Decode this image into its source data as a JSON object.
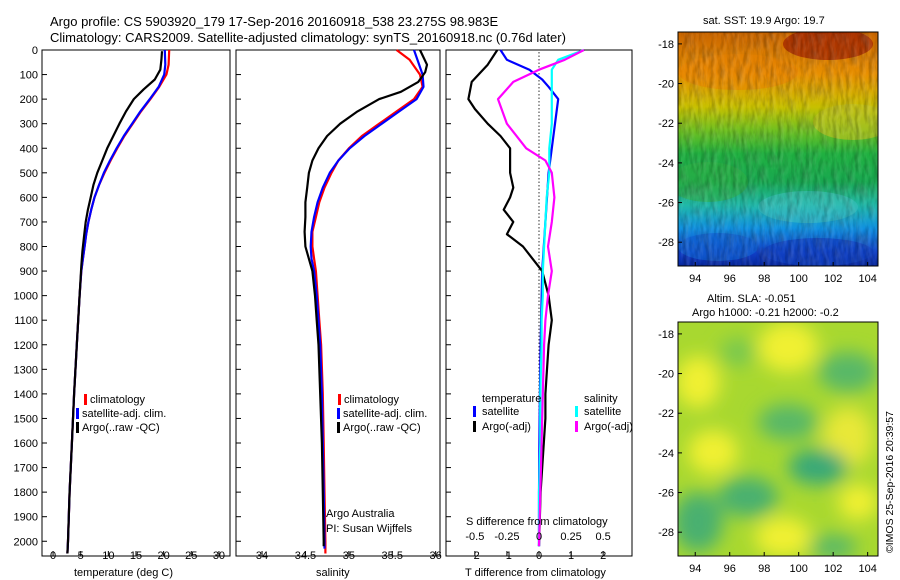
{
  "header": {
    "line1": "Argo profile: CS 5903920_179 17-Sep-2016 20160918_538 23.275S 98.983E",
    "line2": "Climatology: CARS2009. Satellite-adjusted climatology: synTS_20160918.nc (0.76d later)"
  },
  "credit": {
    "argo": "Argo Australia",
    "pi": "PI: Susan Wijffels",
    "stamp": "©IMOS 25-Sep-2016 20:39:57"
  },
  "map_sst": {
    "title": "sat. SST: 19.9  Argo: 19.7",
    "x_ticks": [
      "94",
      "96",
      "98",
      "100",
      "102",
      "104"
    ],
    "y_ticks": [
      "-18",
      "-20",
      "-22",
      "-24",
      "-26",
      "-28"
    ]
  },
  "map_sla": {
    "title1": "Altim. SLA: -0.051",
    "title2": "Argo h1000: -0.21  h2000: -0.2",
    "x_ticks": [
      "94",
      "96",
      "98",
      "100",
      "102",
      "104"
    ],
    "y_ticks": [
      "-18",
      "-20",
      "-22",
      "-24",
      "-26",
      "-28"
    ]
  },
  "colors": {
    "climatology": "#ff0000",
    "satellite": "#0000ff",
    "argo": "#000000",
    "satellite_s": "#00ffff",
    "argo_s": "#ff00ff"
  },
  "chart_data": [
    {
      "type": "line",
      "xlabel": "temperature (deg C)",
      "x_ticks": [
        "0",
        "5",
        "10",
        "15",
        "20",
        "25",
        "30"
      ],
      "y_ticks": [
        "0",
        "100",
        "200",
        "300",
        "400",
        "500",
        "600",
        "700",
        "800",
        "900",
        "1000",
        "1100",
        "1200",
        "1300",
        "1400",
        "1500",
        "1600",
        "1700",
        "1800",
        "1900",
        "2000"
      ],
      "xlim": [
        -2,
        32
      ],
      "ylim": [
        2060,
        0
      ],
      "legend": [
        "climatology",
        "satellite-adj. clim.",
        "Argo(..raw -QC)"
      ],
      "series": [
        {
          "name": "climatology",
          "points": [
            [
              21.0,
              0
            ],
            [
              20.9,
              60
            ],
            [
              20.5,
              100
            ],
            [
              19.2,
              150
            ],
            [
              17.6,
              200
            ],
            [
              15.9,
              250
            ],
            [
              14.4,
              300
            ],
            [
              12.9,
              350
            ],
            [
              11.6,
              400
            ],
            [
              10.4,
              450
            ],
            [
              9.3,
              500
            ],
            [
              8.3,
              550
            ],
            [
              7.5,
              600
            ],
            [
              6.9,
              650
            ],
            [
              6.4,
              700
            ],
            [
              6.0,
              750
            ],
            [
              5.7,
              800
            ],
            [
              5.4,
              850
            ],
            [
              5.1,
              900
            ],
            [
              4.8,
              1000
            ],
            [
              4.3,
              1200
            ],
            [
              3.8,
              1400
            ],
            [
              3.4,
              1600
            ],
            [
              3.0,
              1800
            ],
            [
              2.7,
              2000
            ],
            [
              2.6,
              2050
            ]
          ]
        },
        {
          "name": "satellite-adj. clim.",
          "points": [
            [
              20.2,
              0
            ],
            [
              20.3,
              60
            ],
            [
              20.1,
              100
            ],
            [
              19.1,
              150
            ],
            [
              17.5,
              200
            ],
            [
              15.8,
              250
            ],
            [
              14.3,
              300
            ],
            [
              12.8,
              350
            ],
            [
              11.5,
              400
            ],
            [
              10.3,
              450
            ],
            [
              9.2,
              500
            ],
            [
              8.3,
              550
            ],
            [
              7.5,
              600
            ],
            [
              6.9,
              650
            ],
            [
              6.4,
              700
            ],
            [
              6.0,
              750
            ],
            [
              5.7,
              800
            ],
            [
              5.4,
              850
            ],
            [
              5.1,
              900
            ],
            [
              4.8,
              1000
            ],
            [
              4.3,
              1200
            ],
            [
              3.8,
              1400
            ],
            [
              3.4,
              1600
            ],
            [
              3.0,
              1800
            ],
            [
              2.7,
              2000
            ],
            [
              2.6,
              2050
            ]
          ]
        },
        {
          "name": "Argo(..raw -QC)",
          "points": [
            [
              19.7,
              5
            ],
            [
              19.6,
              40
            ],
            [
              19.4,
              80
            ],
            [
              18.4,
              120
            ],
            [
              16.4,
              160
            ],
            [
              14.6,
              200
            ],
            [
              13.2,
              250
            ],
            [
              12.0,
              300
            ],
            [
              10.9,
              350
            ],
            [
              9.8,
              400
            ],
            [
              8.9,
              450
            ],
            [
              8.0,
              500
            ],
            [
              7.3,
              550
            ],
            [
              6.8,
              600
            ],
            [
              6.3,
              650
            ],
            [
              5.9,
              700
            ],
            [
              5.6,
              760
            ],
            [
              5.3,
              820
            ],
            [
              5.1,
              880
            ],
            [
              4.8,
              1000
            ],
            [
              4.3,
              1200
            ],
            [
              3.8,
              1400
            ],
            [
              3.4,
              1600
            ],
            [
              3.0,
              1800
            ],
            [
              2.7,
              2000
            ],
            [
              2.6,
              2050
            ]
          ]
        }
      ]
    },
    {
      "type": "line",
      "xlabel": "salinity",
      "x_ticks": [
        "34",
        "34.5",
        "35",
        "35.5",
        "36"
      ],
      "y_ticks": [],
      "xlim": [
        33.7,
        36.05
      ],
      "ylim": [
        2060,
        0
      ],
      "legend": [
        "climatology",
        "satellite-adj. clim.",
        "Argo(..raw -QC)"
      ],
      "series": [
        {
          "name": "climatology",
          "points": [
            [
              35.55,
              0
            ],
            [
              35.7,
              40
            ],
            [
              35.82,
              100
            ],
            [
              35.85,
              150
            ],
            [
              35.75,
              200
            ],
            [
              35.55,
              250
            ],
            [
              35.35,
              300
            ],
            [
              35.15,
              350
            ],
            [
              35.0,
              400
            ],
            [
              34.88,
              450
            ],
            [
              34.8,
              500
            ],
            [
              34.72,
              560
            ],
            [
              34.66,
              620
            ],
            [
              34.62,
              680
            ],
            [
              34.58,
              740
            ],
            [
              34.58,
              800
            ],
            [
              34.6,
              850
            ],
            [
              34.62,
              900
            ],
            [
              34.64,
              1000
            ],
            [
              34.66,
              1100
            ],
            [
              34.68,
              1200
            ],
            [
              34.7,
              1400
            ],
            [
              34.71,
              1600
            ],
            [
              34.72,
              1800
            ],
            [
              34.73,
              2000
            ],
            [
              34.73,
              2050
            ]
          ]
        },
        {
          "name": "satellite-adj. clim.",
          "points": [
            [
              35.75,
              0
            ],
            [
              35.8,
              50
            ],
            [
              35.85,
              100
            ],
            [
              35.86,
              150
            ],
            [
              35.78,
              200
            ],
            [
              35.58,
              250
            ],
            [
              35.38,
              300
            ],
            [
              35.18,
              350
            ],
            [
              35.01,
              400
            ],
            [
              34.88,
              450
            ],
            [
              34.78,
              500
            ],
            [
              34.7,
              560
            ],
            [
              34.64,
              620
            ],
            [
              34.6,
              680
            ],
            [
              34.57,
              740
            ],
            [
              34.56,
              800
            ],
            [
              34.57,
              850
            ],
            [
              34.6,
              900
            ],
            [
              34.63,
              1000
            ],
            [
              34.65,
              1100
            ],
            [
              34.67,
              1200
            ],
            [
              34.69,
              1400
            ],
            [
              34.7,
              1600
            ],
            [
              34.71,
              1800
            ],
            [
              34.72,
              2000
            ],
            [
              34.72,
              2030
            ]
          ]
        },
        {
          "name": "Argo(..raw -QC)",
          "points": [
            [
              35.82,
              0
            ],
            [
              35.9,
              60
            ],
            [
              35.88,
              90
            ],
            [
              35.8,
              130
            ],
            [
              35.6,
              170
            ],
            [
              35.35,
              200
            ],
            [
              35.1,
              250
            ],
            [
              34.9,
              300
            ],
            [
              34.75,
              350
            ],
            [
              34.65,
              400
            ],
            [
              34.58,
              450
            ],
            [
              34.54,
              500
            ],
            [
              34.52,
              560
            ],
            [
              34.5,
              620
            ],
            [
              34.5,
              680
            ],
            [
              34.49,
              740
            ],
            [
              34.5,
              800
            ],
            [
              34.54,
              850
            ],
            [
              34.58,
              900
            ],
            [
              34.61,
              1000
            ],
            [
              34.63,
              1100
            ],
            [
              34.65,
              1200
            ],
            [
              34.67,
              1400
            ],
            [
              34.69,
              1600
            ],
            [
              34.7,
              1800
            ],
            [
              34.71,
              2000
            ],
            [
              34.71,
              2020
            ]
          ]
        }
      ]
    },
    {
      "type": "line",
      "xlabel": "T difference from climatology",
      "s_axis_label": "S difference from climatology",
      "x_ticks": [
        "-2",
        "-1",
        "0",
        "1",
        "2"
      ],
      "s_ticks": [
        "-0.5",
        "-0.25",
        "0",
        "0.25",
        "0.5"
      ],
      "xlim": [
        -2.9,
        2.9
      ],
      "ylim": [
        2060,
        0
      ],
      "legend_t_title": "temperature",
      "legend_s_title": "salinity",
      "legend_t": [
        "satellite",
        "Argo(-adj)"
      ],
      "legend_s": [
        "satellite",
        "Argo(-adj)"
      ],
      "series": [
        {
          "name": "satellite",
          "points": [
            [
              -1.2,
              0
            ],
            [
              -1.0,
              40
            ],
            [
              -0.3,
              80
            ],
            [
              0.1,
              120
            ],
            [
              0.3,
              150
            ],
            [
              0.6,
              200
            ],
            [
              0.5,
              300
            ],
            [
              0.3,
              500
            ],
            [
              0.2,
              700
            ],
            [
              0.1,
              900
            ],
            [
              0.05,
              1200
            ],
            [
              0.02,
              1500
            ],
            [
              0.0,
              1800
            ],
            [
              0.0,
              2020
            ]
          ]
        },
        {
          "name": "Argo(-adj)",
          "points": [
            [
              -1.3,
              0
            ],
            [
              -1.6,
              60
            ],
            [
              -2.1,
              130
            ],
            [
              -2.2,
              200
            ],
            [
              -2.0,
              240
            ],
            [
              -1.6,
              300
            ],
            [
              -1.2,
              350
            ],
            [
              -0.9,
              400
            ],
            [
              -0.9,
              500
            ],
            [
              -0.8,
              560
            ],
            [
              -0.9,
              600
            ],
            [
              -1.1,
              650
            ],
            [
              -0.8,
              700
            ],
            [
              -1.0,
              750
            ],
            [
              -0.5,
              800
            ],
            [
              -0.2,
              850
            ],
            [
              0.1,
              900
            ],
            [
              0.3,
              1000
            ],
            [
              0.4,
              1100
            ],
            [
              0.3,
              1200
            ],
            [
              0.25,
              1300
            ],
            [
              0.2,
              1400
            ],
            [
              0.2,
              1500
            ],
            [
              0.15,
              1600
            ],
            [
              0.1,
              1700
            ],
            [
              0.05,
              1800
            ],
            [
              0.0,
              2020
            ]
          ]
        },
        {
          "name": "satellite (S)",
          "points": [
            [
              0.35,
              0
            ],
            [
              0.15,
              40
            ],
            [
              0.1,
              80
            ],
            [
              0.1,
              130
            ],
            [
              0.1,
              200
            ],
            [
              0.1,
              300
            ],
            [
              0.08,
              400
            ],
            [
              0.08,
              500
            ],
            [
              0.06,
              600
            ],
            [
              0.05,
              700
            ],
            [
              0.04,
              800
            ],
            [
              0.03,
              900
            ],
            [
              0.03,
              1000
            ],
            [
              0.02,
              1100
            ],
            [
              0.02,
              1200
            ],
            [
              0.01,
              1400
            ],
            [
              0.01,
              1600
            ],
            [
              0.0,
              1800
            ],
            [
              0.0,
              2020
            ]
          ]
        },
        {
          "name": "Argo(-adj) (S)",
          "points": [
            [
              0.35,
              0
            ],
            [
              0.2,
              40
            ],
            [
              0.0,
              80
            ],
            [
              -0.2,
              130
            ],
            [
              -0.32,
              200
            ],
            [
              -0.25,
              300
            ],
            [
              -0.1,
              400
            ],
            [
              0.05,
              450
            ],
            [
              0.1,
              500
            ],
            [
              0.12,
              600
            ],
            [
              0.1,
              700
            ],
            [
              0.07,
              800
            ],
            [
              0.1,
              900
            ],
            [
              0.07,
              1000
            ],
            [
              0.05,
              1100
            ],
            [
              0.04,
              1200
            ],
            [
              0.03,
              1400
            ],
            [
              0.02,
              1600
            ],
            [
              0.01,
              1800
            ],
            [
              0.0,
              2020
            ]
          ]
        }
      ]
    }
  ]
}
